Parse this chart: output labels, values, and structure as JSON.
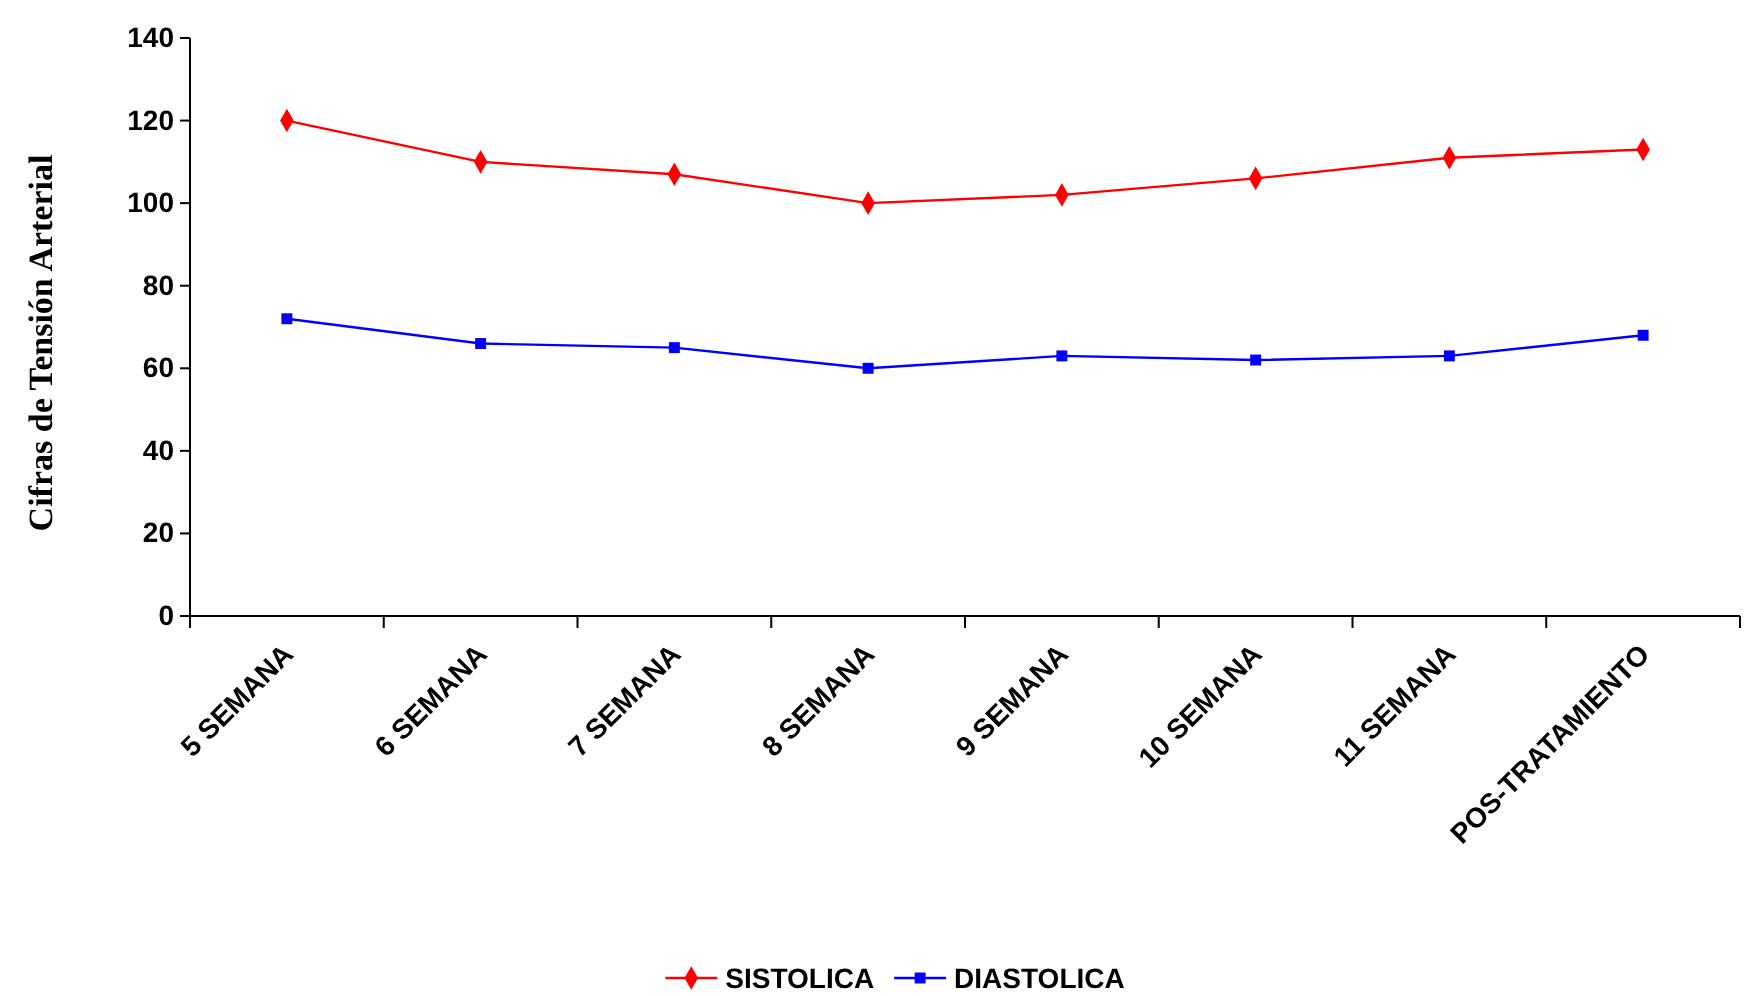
{
  "chart_data": {
    "type": "line",
    "ylabel": "Cifras de Tensión Arterial",
    "categories": [
      "5 SEMANA",
      "6 SEMANA",
      "7 SEMANA",
      "8 SEMANA",
      "9 SEMANA",
      "10 SEMANA",
      "11 SEMANA",
      "POS-TRATAMIENTO"
    ],
    "series": [
      {
        "name": "SISTOLICA",
        "color": "#ff0000",
        "marker": "diamond",
        "values": [
          120,
          110,
          107,
          100,
          102,
          106,
          111,
          113
        ]
      },
      {
        "name": "DIASTOLICA",
        "color": "#0000ff",
        "marker": "square",
        "values": [
          72,
          66,
          65,
          60,
          63,
          62,
          63,
          68
        ]
      }
    ],
    "ylim": [
      0,
      140
    ],
    "yticks": [
      0,
      20,
      40,
      60,
      80,
      100,
      120,
      140
    ],
    "grid": false,
    "legend": "bottom",
    "line_style": "solid"
  }
}
